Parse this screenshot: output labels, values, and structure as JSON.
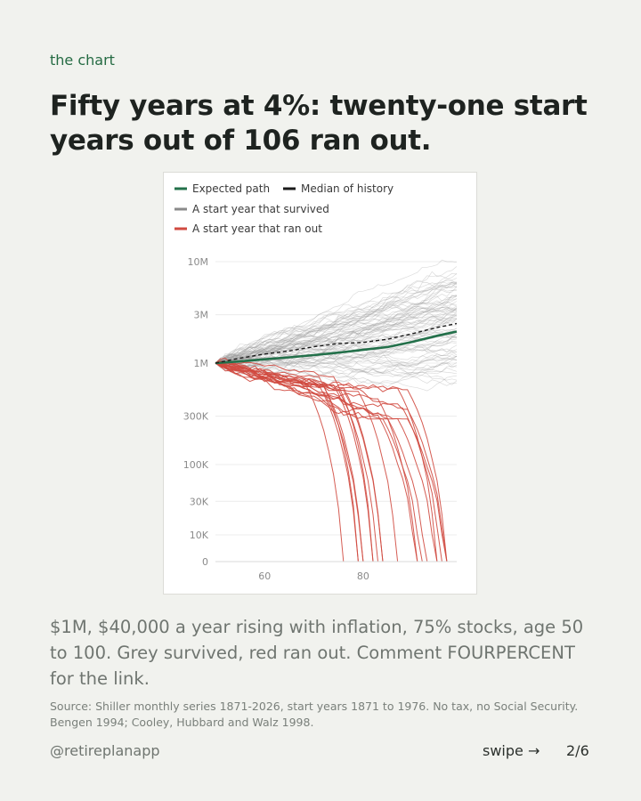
{
  "eyebrow": "the chart",
  "headline": {
    "line1": "Fifty years at 4%: twenty-one start",
    "line2": "years out of 106 ran out."
  },
  "caption": "$1M, $40,000 a year rising with inflation, 75% stocks, age 50 to 100. Grey survived, red ran out. Comment FOURPERCENT for the link.",
  "source": {
    "line1": "Source: Shiller monthly series 1871-2026, start years 1871 to 1976. No tax, no Social Security.",
    "line2": "Bengen 1994; Cooley, Hubbard and Walz 1998."
  },
  "footer": {
    "handle": "@retireplanapp",
    "swipe_label": "swipe →",
    "page": "2/6"
  },
  "chart_data": {
    "type": "line",
    "title": "",
    "xlabel": "",
    "ylabel": "",
    "y_scale": "log",
    "xlim": [
      50,
      99
    ],
    "x_ticks": [
      60,
      80
    ],
    "y_ticks": [
      {
        "value": 0,
        "label": "0"
      },
      {
        "value": 10000,
        "label": "10K"
      },
      {
        "value": 30000,
        "label": "30K"
      },
      {
        "value": 100000,
        "label": "100K"
      },
      {
        "value": 300000,
        "label": "300K"
      },
      {
        "value": 1000000,
        "label": "1M"
      },
      {
        "value": 3000000,
        "label": "3M"
      },
      {
        "value": 10000000,
        "label": "10M"
      }
    ],
    "legend": [
      {
        "label": "Expected path",
        "color": "#23704a",
        "style": "solid"
      },
      {
        "label": "Median of history",
        "color": "#1b1b1b",
        "style": "solid"
      },
      {
        "label": "A start year that survived",
        "color": "#8a8a8a",
        "style": "solid"
      },
      {
        "label": "A start year that ran out",
        "color": "#d04a40",
        "style": "solid"
      }
    ],
    "legend_position": "top-left",
    "grid": "horizontal",
    "counts": {
      "total_start_years": 106,
      "ran_out": 21
    },
    "series": [
      {
        "name": "Expected path",
        "color": "#23704a",
        "dash": "",
        "x": [
          50,
          55,
          60,
          65,
          70,
          75,
          80,
          85,
          90,
          95,
          99
        ],
        "values": [
          1000000,
          1040000,
          1090000,
          1140000,
          1200000,
          1270000,
          1350000,
          1440000,
          1620000,
          1860000,
          2050000
        ]
      },
      {
        "name": "Median of history",
        "color": "#1b1b1b",
        "dash": "4,3",
        "x": [
          50,
          55,
          60,
          65,
          70,
          75,
          80,
          85,
          90,
          95,
          99
        ],
        "values": [
          1000000,
          1120000,
          1230000,
          1320000,
          1450000,
          1560000,
          1600000,
          1720000,
          1950000,
          2250000,
          2450000
        ]
      }
    ]
  }
}
